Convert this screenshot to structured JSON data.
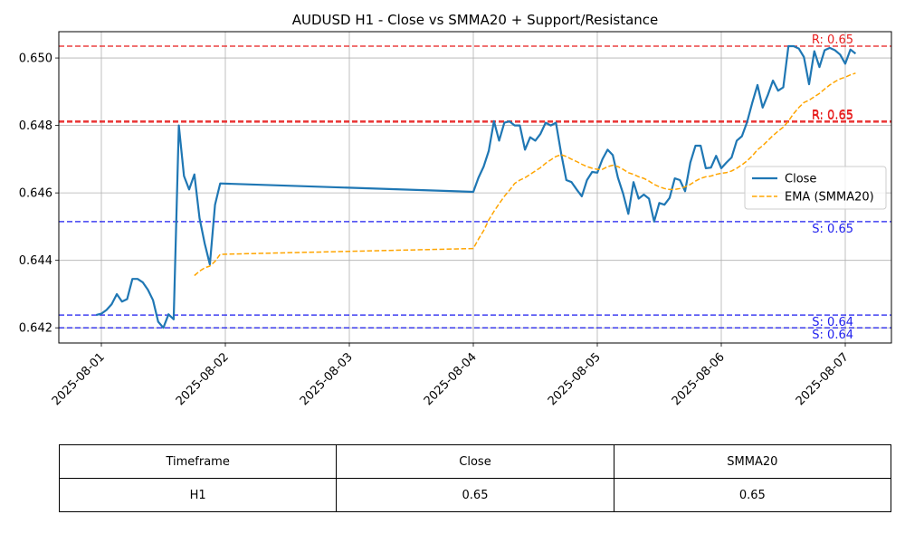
{
  "chart_data": {
    "type": "line",
    "title": "AUDUSD H1 - Close vs SMMA20 + Support/Resistance",
    "xlabel": "",
    "ylabel": "",
    "x_tick_labels": [
      "2025-08-01",
      "2025-08-02",
      "2025-08-03",
      "2025-08-04",
      "2025-08-05",
      "2025-08-06",
      "2025-08-07"
    ],
    "y_tick_labels": [
      "0.642",
      "0.644",
      "0.646",
      "0.648",
      "0.650"
    ],
    "ylim": [
      0.64155,
      0.65078
    ],
    "grid": true,
    "legend_position": "center-right",
    "series": [
      {
        "name": "Close",
        "color": "#1f77b4",
        "style": "solid",
        "points": [
          [
            "2025-07-31 23:00",
            0.64238
          ],
          [
            "2025-08-01 00:00",
            0.64242
          ],
          [
            "2025-08-01 01:00",
            0.64253
          ],
          [
            "2025-08-01 02:00",
            0.6427
          ],
          [
            "2025-08-01 03:00",
            0.643
          ],
          [
            "2025-08-01 04:00",
            0.64278
          ],
          [
            "2025-08-01 05:00",
            0.64285
          ],
          [
            "2025-08-01 06:00",
            0.64345
          ],
          [
            "2025-08-01 07:00",
            0.64345
          ],
          [
            "2025-08-01 08:00",
            0.64335
          ],
          [
            "2025-08-01 09:00",
            0.64313
          ],
          [
            "2025-08-01 10:00",
            0.64282
          ],
          [
            "2025-08-01 11:00",
            0.64218
          ],
          [
            "2025-08-01 12:00",
            0.642
          ],
          [
            "2025-08-01 13:00",
            0.6424
          ],
          [
            "2025-08-01 14:00",
            0.64225
          ],
          [
            "2025-08-01 15:00",
            0.648
          ],
          [
            "2025-08-01 16:00",
            0.6465
          ],
          [
            "2025-08-01 17:00",
            0.6461
          ],
          [
            "2025-08-01 18:00",
            0.64655
          ],
          [
            "2025-08-01 19:00",
            0.64525
          ],
          [
            "2025-08-01 20:00",
            0.6445
          ],
          [
            "2025-08-01 21:00",
            0.64388
          ],
          [
            "2025-08-01 22:00",
            0.64565
          ],
          [
            "2025-08-01 23:00",
            0.64628
          ],
          [
            "2025-08-04 00:00",
            0.64603
          ],
          [
            "2025-08-04 01:00",
            0.64645
          ],
          [
            "2025-08-04 02:00",
            0.64678
          ],
          [
            "2025-08-04 03:00",
            0.64725
          ],
          [
            "2025-08-04 04:00",
            0.64813
          ],
          [
            "2025-08-04 05:00",
            0.64755
          ],
          [
            "2025-08-04 06:00",
            0.64808
          ],
          [
            "2025-08-04 07:00",
            0.64812
          ],
          [
            "2025-08-04 08:00",
            0.648
          ],
          [
            "2025-08-04 09:00",
            0.648
          ],
          [
            "2025-08-04 10:00",
            0.64728
          ],
          [
            "2025-08-04 11:00",
            0.64765
          ],
          [
            "2025-08-04 12:00",
            0.64755
          ],
          [
            "2025-08-04 13:00",
            0.64775
          ],
          [
            "2025-08-04 14:00",
            0.64808
          ],
          [
            "2025-08-04 15:00",
            0.648
          ],
          [
            "2025-08-04 16:00",
            0.64808
          ],
          [
            "2025-08-04 17:00",
            0.64718
          ],
          [
            "2025-08-04 18:00",
            0.64638
          ],
          [
            "2025-08-04 19:00",
            0.64632
          ],
          [
            "2025-08-04 20:00",
            0.6461
          ],
          [
            "2025-08-04 21:00",
            0.6459
          ],
          [
            "2025-08-04 22:00",
            0.64638
          ],
          [
            "2025-08-04 23:00",
            0.64662
          ],
          [
            "2025-08-05 00:00",
            0.6466
          ],
          [
            "2025-08-05 01:00",
            0.647
          ],
          [
            "2025-08-05 02:00",
            0.64728
          ],
          [
            "2025-08-05 03:00",
            0.64712
          ],
          [
            "2025-08-05 04:00",
            0.64645
          ],
          [
            "2025-08-05 05:00",
            0.64598
          ],
          [
            "2025-08-05 06:00",
            0.64538
          ],
          [
            "2025-08-05 07:00",
            0.64632
          ],
          [
            "2025-08-05 08:00",
            0.64583
          ],
          [
            "2025-08-05 09:00",
            0.64595
          ],
          [
            "2025-08-05 10:00",
            0.64583
          ],
          [
            "2025-08-05 11:00",
            0.64515
          ],
          [
            "2025-08-05 12:00",
            0.6457
          ],
          [
            "2025-08-05 13:00",
            0.64565
          ],
          [
            "2025-08-05 14:00",
            0.64585
          ],
          [
            "2025-08-05 15:00",
            0.64643
          ],
          [
            "2025-08-05 16:00",
            0.64638
          ],
          [
            "2025-08-05 17:00",
            0.64605
          ],
          [
            "2025-08-05 18:00",
            0.6469
          ],
          [
            "2025-08-05 19:00",
            0.6474
          ],
          [
            "2025-08-05 20:00",
            0.6474
          ],
          [
            "2025-08-05 21:00",
            0.64673
          ],
          [
            "2025-08-05 22:00",
            0.64675
          ],
          [
            "2025-08-05 23:00",
            0.6471
          ],
          [
            "2025-08-06 00:00",
            0.64673
          ],
          [
            "2025-08-06 01:00",
            0.6469
          ],
          [
            "2025-08-06 02:00",
            0.64705
          ],
          [
            "2025-08-06 03:00",
            0.64755
          ],
          [
            "2025-08-06 04:00",
            0.64768
          ],
          [
            "2025-08-06 05:00",
            0.6481
          ],
          [
            "2025-08-06 06:00",
            0.64868
          ],
          [
            "2025-08-06 07:00",
            0.6492
          ],
          [
            "2025-08-06 08:00",
            0.64853
          ],
          [
            "2025-08-06 09:00",
            0.6489
          ],
          [
            "2025-08-06 10:00",
            0.64933
          ],
          [
            "2025-08-06 11:00",
            0.64903
          ],
          [
            "2025-08-06 12:00",
            0.64913
          ],
          [
            "2025-08-06 13:00",
            0.65035
          ],
          [
            "2025-08-06 14:00",
            0.65035
          ],
          [
            "2025-08-06 15:00",
            0.65028
          ],
          [
            "2025-08-06 16:00",
            0.65003
          ],
          [
            "2025-08-06 17:00",
            0.64922
          ],
          [
            "2025-08-06 18:00",
            0.6502
          ],
          [
            "2025-08-06 19:00",
            0.64973
          ],
          [
            "2025-08-06 20:00",
            0.65023
          ],
          [
            "2025-08-06 21:00",
            0.6503
          ],
          [
            "2025-08-06 22:00",
            0.65023
          ],
          [
            "2025-08-06 23:00",
            0.6501
          ],
          [
            "2025-08-07 00:00",
            0.64983
          ],
          [
            "2025-08-07 01:00",
            0.65025
          ],
          [
            "2025-08-07 02:00",
            0.65013
          ]
        ]
      },
      {
        "name": "EMA (SMMA20)",
        "color": "#ffa500",
        "style": "dashed",
        "points": [
          [
            "2025-08-01 18:00",
            0.64355
          ],
          [
            "2025-08-01 19:00",
            0.64368
          ],
          [
            "2025-08-01 20:00",
            0.64378
          ],
          [
            "2025-08-01 21:00",
            0.64383
          ],
          [
            "2025-08-01 22:00",
            0.64397
          ],
          [
            "2025-08-01 23:00",
            0.64418
          ],
          [
            "2025-08-04 00:00",
            0.64435
          ],
          [
            "2025-08-04 01:00",
            0.64463
          ],
          [
            "2025-08-04 02:00",
            0.64488
          ],
          [
            "2025-08-04 03:00",
            0.6452
          ],
          [
            "2025-08-04 04:00",
            0.64545
          ],
          [
            "2025-08-04 05:00",
            0.64568
          ],
          [
            "2025-08-04 06:00",
            0.6459
          ],
          [
            "2025-08-04 07:00",
            0.64608
          ],
          [
            "2025-08-04 08:00",
            0.64628
          ],
          [
            "2025-08-04 09:00",
            0.64638
          ],
          [
            "2025-08-04 10:00",
            0.64645
          ],
          [
            "2025-08-04 11:00",
            0.64655
          ],
          [
            "2025-08-04 12:00",
            0.64665
          ],
          [
            "2025-08-04 13:00",
            0.64675
          ],
          [
            "2025-08-04 14:00",
            0.64688
          ],
          [
            "2025-08-04 15:00",
            0.64698
          ],
          [
            "2025-08-04 16:00",
            0.64708
          ],
          [
            "2025-08-04 17:00",
            0.64713
          ],
          [
            "2025-08-04 18:00",
            0.64708
          ],
          [
            "2025-08-04 19:00",
            0.647
          ],
          [
            "2025-08-04 20:00",
            0.64693
          ],
          [
            "2025-08-04 21:00",
            0.64685
          ],
          [
            "2025-08-04 22:00",
            0.64678
          ],
          [
            "2025-08-04 23:00",
            0.64673
          ],
          [
            "2025-08-05 00:00",
            0.6467
          ],
          [
            "2025-08-05 01:00",
            0.6467
          ],
          [
            "2025-08-05 02:00",
            0.64678
          ],
          [
            "2025-08-05 03:00",
            0.64682
          ],
          [
            "2025-08-05 04:00",
            0.64678
          ],
          [
            "2025-08-05 05:00",
            0.6467
          ],
          [
            "2025-08-05 06:00",
            0.6466
          ],
          [
            "2025-08-05 07:00",
            0.64655
          ],
          [
            "2025-08-05 08:00",
            0.64648
          ],
          [
            "2025-08-05 09:00",
            0.64643
          ],
          [
            "2025-08-05 10:00",
            0.64635
          ],
          [
            "2025-08-05 11:00",
            0.64625
          ],
          [
            "2025-08-05 12:00",
            0.64618
          ],
          [
            "2025-08-05 13:00",
            0.64613
          ],
          [
            "2025-08-05 14:00",
            0.6461
          ],
          [
            "2025-08-05 15:00",
            0.6461
          ],
          [
            "2025-08-05 16:00",
            0.64613
          ],
          [
            "2025-08-05 17:00",
            0.64618
          ],
          [
            "2025-08-05 18:00",
            0.64625
          ],
          [
            "2025-08-05 19:00",
            0.64635
          ],
          [
            "2025-08-05 20:00",
            0.64643
          ],
          [
            "2025-08-05 21:00",
            0.64648
          ],
          [
            "2025-08-05 22:00",
            0.6465
          ],
          [
            "2025-08-05 23:00",
            0.64655
          ],
          [
            "2025-08-06 00:00",
            0.64658
          ],
          [
            "2025-08-06 01:00",
            0.6466
          ],
          [
            "2025-08-06 02:00",
            0.64665
          ],
          [
            "2025-08-06 03:00",
            0.64673
          ],
          [
            "2025-08-06 04:00",
            0.64683
          ],
          [
            "2025-08-06 05:00",
            0.64695
          ],
          [
            "2025-08-06 06:00",
            0.6471
          ],
          [
            "2025-08-06 07:00",
            0.64728
          ],
          [
            "2025-08-06 08:00",
            0.6474
          ],
          [
            "2025-08-06 09:00",
            0.64755
          ],
          [
            "2025-08-06 10:00",
            0.6477
          ],
          [
            "2025-08-06 11:00",
            0.64783
          ],
          [
            "2025-08-06 12:00",
            0.64795
          ],
          [
            "2025-08-06 13:00",
            0.64813
          ],
          [
            "2025-08-06 14:00",
            0.64835
          ],
          [
            "2025-08-06 15:00",
            0.64853
          ],
          [
            "2025-08-06 16:00",
            0.64868
          ],
          [
            "2025-08-06 17:00",
            0.64875
          ],
          [
            "2025-08-06 18:00",
            0.64885
          ],
          [
            "2025-08-06 19:00",
            0.64895
          ],
          [
            "2025-08-06 20:00",
            0.64908
          ],
          [
            "2025-08-06 21:00",
            0.6492
          ],
          [
            "2025-08-06 22:00",
            0.6493
          ],
          [
            "2025-08-06 23:00",
            0.64938
          ],
          [
            "2025-08-07 00:00",
            0.64943
          ],
          [
            "2025-08-07 01:00",
            0.6495
          ],
          [
            "2025-08-07 02:00",
            0.64955
          ]
        ]
      }
    ],
    "levels": [
      {
        "kind": "resistance",
        "value": 0.65035,
        "label": "R: 0.65",
        "color": "#e82020"
      },
      {
        "kind": "resistance",
        "value": 0.64813,
        "label": "R: 0.65",
        "color": "#e82020"
      },
      {
        "kind": "resistance",
        "value": 0.6481,
        "label": "R: 0.65",
        "color": "#e82020"
      },
      {
        "kind": "support",
        "value": 0.64515,
        "label": "S: 0.65",
        "color": "#2020ee"
      },
      {
        "kind": "support",
        "value": 0.64238,
        "label": "S: 0.64",
        "color": "#2020ee"
      },
      {
        "kind": "support",
        "value": 0.642,
        "label": "S: 0.64",
        "color": "#2020ee"
      }
    ],
    "legend": [
      "Close",
      "EMA (SMMA20)"
    ]
  },
  "table": {
    "headers": [
      "Timeframe",
      "Close",
      "SMMA20"
    ],
    "rows": [
      [
        "H1",
        "0.65",
        "0.65"
      ]
    ]
  }
}
